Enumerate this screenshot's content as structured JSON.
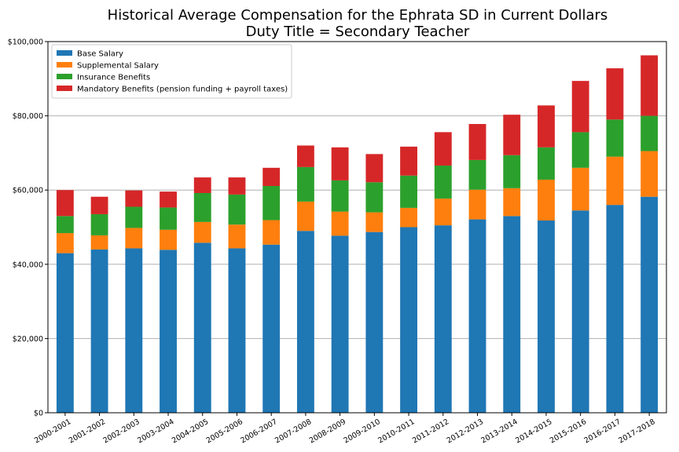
{
  "chart_data": {
    "type": "bar",
    "stacked": true,
    "title": "Historical Average Compensation for the Ephrata SD in Current Dollars",
    "subtitle": "Duty Title = Secondary Teacher",
    "xlabel": "",
    "ylabel": "",
    "ylim": [
      0,
      100000
    ],
    "yticks": [
      0,
      20000,
      40000,
      60000,
      80000,
      100000
    ],
    "ytick_labels": [
      "$0",
      "$20,000",
      "$40,000",
      "$60,000",
      "$80,000",
      "$100,000"
    ],
    "grid": "horizontal",
    "legend_position": "top-left",
    "categories": [
      "2000-2001",
      "2001-2002",
      "2002-2003",
      "2003-2004",
      "2004-2005",
      "2005-2006",
      "2006-2007",
      "2007-2008",
      "2008-2009",
      "2009-2010",
      "2010-2011",
      "2011-2012",
      "2012-2013",
      "2013-2014",
      "2014-2015",
      "2015-2016",
      "2016-2017",
      "2017-2018"
    ],
    "series": [
      {
        "name": "Base Salary",
        "color": "#1f77b4",
        "values": [
          43000,
          44000,
          44300,
          43900,
          45800,
          44300,
          45300,
          49000,
          47700,
          48700,
          50000,
          50500,
          52100,
          53000,
          51800,
          54500,
          56000,
          58200
        ]
      },
      {
        "name": "Supplemental Salary",
        "color": "#ff7f0e",
        "values": [
          5400,
          3800,
          5500,
          5400,
          5600,
          6400,
          6600,
          7900,
          6500,
          5300,
          5200,
          7200,
          8000,
          7500,
          11000,
          11500,
          13000,
          12300
        ]
      },
      {
        "name": "Insurance Benefits",
        "color": "#2ca02c",
        "values": [
          4600,
          5700,
          5700,
          6000,
          7800,
          8100,
          9200,
          9300,
          8400,
          8100,
          8700,
          8900,
          8000,
          8900,
          8700,
          9600,
          10000,
          9500
        ]
      },
      {
        "name": "Mandatory Benefits (pension funding + payroll taxes)",
        "color": "#d62728",
        "values": [
          7000,
          4700,
          4400,
          4300,
          4200,
          4600,
          4900,
          5800,
          8900,
          7600,
          7800,
          9000,
          9700,
          10900,
          11300,
          13800,
          13800,
          16300
        ]
      }
    ]
  }
}
